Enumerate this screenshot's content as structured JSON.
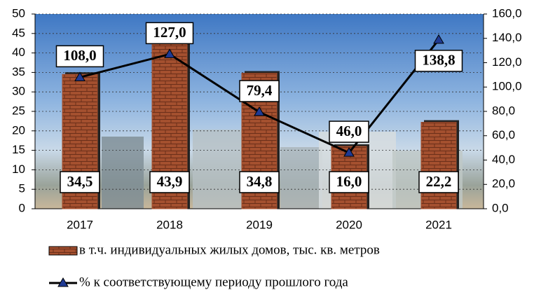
{
  "chart_data": {
    "type": "bar",
    "categories": [
      "2017",
      "2018",
      "2019",
      "2020",
      "2021"
    ],
    "series": [
      {
        "name": "в т.ч. индивидуальных жилых домов, тыс. кв. метров",
        "type": "bar",
        "color": "#a4502f",
        "values": [
          34.5,
          43.9,
          34.8,
          16.0,
          22.2
        ],
        "value_labels": [
          "34,5",
          "43,9",
          "34,8",
          "16,0",
          "22,2"
        ]
      },
      {
        "name": "% к соответствующему периоду прошлого года",
        "type": "line",
        "axis": "y2",
        "color": "#000000",
        "values": [
          108.0,
          127.0,
          79.4,
          46.0,
          138.8
        ],
        "value_labels": [
          "108,0",
          "127,0",
          "79,4",
          "46,0",
          "138,8"
        ]
      }
    ],
    "ylim": [
      0,
      50
    ],
    "yticks": [
      0,
      5,
      10,
      15,
      20,
      25,
      30,
      35,
      40,
      45,
      50
    ],
    "y2lim": [
      0,
      160
    ],
    "y2ticks": [
      {
        "value": 0,
        "label": "0,0"
      },
      {
        "value": 20,
        "label": "20,0"
      },
      {
        "value": 40,
        "label": "40,0"
      },
      {
        "value": 60,
        "label": "60,0"
      },
      {
        "value": 80,
        "label": "80,0"
      },
      {
        "value": 100,
        "label": "100,0"
      },
      {
        "value": 120,
        "label": "120,0"
      },
      {
        "value": 140,
        "label": "140,0"
      },
      {
        "value": 160,
        "label": "160,0"
      }
    ],
    "grid": true
  }
}
